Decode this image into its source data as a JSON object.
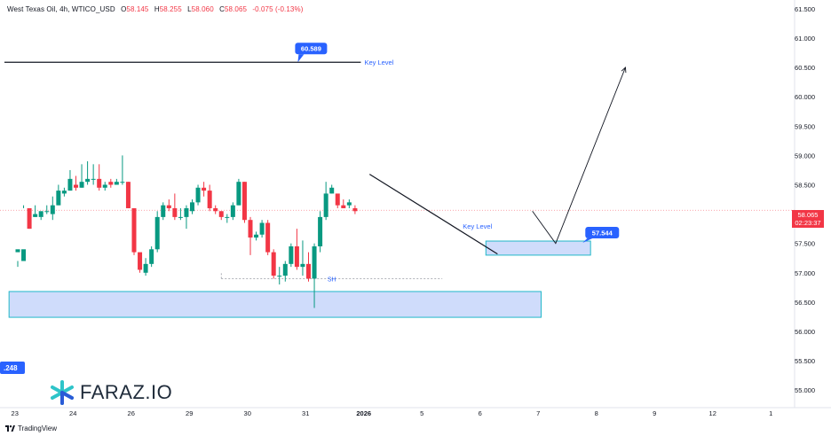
{
  "header": {
    "symbol": "West Texas Oil, 4h, WTICO_USD",
    "open_label": "O",
    "open": "58.145",
    "high_label": "H",
    "high": "58.255",
    "low_label": "L",
    "low": "58.060",
    "close_label": "C",
    "close": "58.065",
    "change": "-0.075 (-0.13%)"
  },
  "price_tag": {
    "price": "58.065",
    "countdown": "02:23:37"
  },
  "branding": {
    "logo_text": "FARAZ.IO",
    "platform": "TradingView"
  },
  "colors": {
    "up": "#089981",
    "down": "#f23645",
    "zone_fill": "#cfdcfb",
    "zone_border": "#22b8c9",
    "callout": "#2962ff"
  },
  "chart_data": {
    "type": "candlestick",
    "ylim": [
      54.7,
      61.65
    ],
    "y_ticks": [
      "61.500",
      "61.000",
      "60.500",
      "60.000",
      "59.500",
      "59.000",
      "58.500",
      "58.000",
      "57.500",
      "57.000",
      "56.500",
      "56.000",
      "55.500",
      "55.000"
    ],
    "y_tick_values": [
      61.5,
      61.0,
      60.5,
      60.0,
      59.5,
      59.0,
      58.5,
      58.0,
      57.5,
      57.0,
      56.5,
      56.0,
      55.5,
      55.0
    ],
    "x_ticks": [
      "23",
      "24",
      "26",
      "29",
      "30",
      "31",
      "2026",
      "5",
      "6",
      "7",
      "8",
      "9",
      "12",
      "1"
    ],
    "x_tick_positions": [
      -0.5,
      9.5,
      19.5,
      29.5,
      39.5,
      49.5,
      59.5,
      69.5,
      79.5,
      89.5,
      99.5,
      109.5,
      119.5,
      129.5
    ],
    "candles": [
      [
        57.35,
        57.4,
        57.2,
        57.1
      ],
      [
        57.2,
        57.4,
        58.1,
        58.15
      ],
      [
        58.1,
        57.75,
        58.1,
        57.75
      ],
      [
        57.95,
        58.0,
        58.15,
        57.95
      ],
      [
        57.95,
        58.05,
        57.95,
        57.9
      ],
      [
        58.05,
        58.05,
        58.15,
        58.0
      ],
      [
        58.0,
        58.15,
        58.3,
        57.9
      ],
      [
        58.15,
        58.4,
        58.5,
        58.15
      ],
      [
        58.35,
        58.4,
        58.45,
        58.3
      ],
      [
        58.4,
        58.6,
        58.75,
        58.4
      ],
      [
        58.5,
        58.45,
        58.65,
        58.4
      ],
      [
        58.45,
        58.55,
        58.85,
        58.45
      ],
      [
        58.55,
        58.6,
        58.9,
        58.5
      ],
      [
        58.6,
        58.6,
        58.85,
        58.5
      ],
      [
        58.6,
        58.45,
        58.85,
        58.4
      ],
      [
        58.45,
        58.5,
        58.55,
        58.4
      ],
      [
        58.55,
        58.5,
        58.6,
        58.45
      ],
      [
        58.5,
        58.55,
        58.6,
        58.5
      ],
      [
        58.55,
        58.55,
        59.0,
        58.5
      ],
      [
        58.55,
        58.1,
        58.55,
        58.1
      ],
      [
        58.1,
        57.35,
        58.1,
        57.3
      ],
      [
        57.35,
        57.05,
        57.3,
        57.0
      ],
      [
        57.0,
        57.15,
        57.25,
        56.95
      ],
      [
        57.15,
        57.4,
        57.45,
        57.1
      ],
      [
        57.4,
        57.95,
        58.05,
        57.35
      ],
      [
        57.95,
        58.15,
        58.2,
        57.9
      ],
      [
        58.15,
        58.1,
        58.25,
        58.05
      ],
      [
        58.1,
        57.95,
        58.35,
        57.9
      ],
      [
        57.95,
        57.95,
        58.1,
        57.9
      ],
      [
        57.95,
        58.1,
        58.15,
        57.75
      ],
      [
        58.05,
        58.2,
        58.25,
        58.0
      ],
      [
        58.2,
        58.45,
        58.5,
        58.15
      ],
      [
        58.45,
        58.4,
        58.55,
        58.3
      ],
      [
        58.4,
        58.1,
        58.5,
        58.05
      ],
      [
        58.1,
        58.05,
        58.15,
        58.0
      ],
      [
        58.05,
        57.95,
        58.05,
        57.9
      ],
      [
        57.95,
        57.95,
        58.0,
        57.85
      ],
      [
        57.95,
        58.15,
        58.2,
        57.9
      ],
      [
        58.15,
        58.55,
        58.6,
        58.15
      ],
      [
        58.55,
        57.9,
        58.55,
        57.85
      ],
      [
        57.9,
        57.6,
        57.95,
        57.3
      ],
      [
        57.6,
        57.65,
        57.7,
        57.55
      ],
      [
        57.65,
        57.85,
        57.9,
        57.6
      ],
      [
        57.85,
        57.35,
        57.9,
        57.3
      ],
      [
        57.35,
        56.95,
        57.4,
        56.9
      ],
      [
        56.95,
        56.95,
        57.1,
        56.8
      ],
      [
        56.95,
        57.15,
        57.2,
        56.85
      ],
      [
        57.15,
        57.45,
        57.5,
        57.1
      ],
      [
        57.45,
        57.1,
        57.75,
        57.05
      ],
      [
        57.1,
        57.15,
        57.55,
        56.95
      ],
      [
        57.15,
        56.9,
        57.35,
        56.85
      ],
      [
        56.9,
        57.45,
        57.5,
        56.4
      ],
      [
        57.45,
        57.95,
        58.05,
        57.35
      ],
      [
        57.95,
        58.35,
        58.55,
        57.9
      ],
      [
        58.35,
        58.45,
        58.5,
        58.35
      ],
      [
        58.35,
        58.15,
        58.3,
        58.1
      ],
      [
        58.15,
        58.1,
        58.25,
        58.1
      ],
      [
        58.15,
        58.2,
        58.25,
        58.1
      ],
      [
        58.1,
        58.05,
        58.15,
        58.0
      ]
    ],
    "candle_x": [
      0,
      1,
      2,
      3,
      4,
      5,
      6,
      7,
      8,
      9,
      10,
      11,
      12,
      13,
      14,
      15,
      16,
      17,
      18,
      19,
      20,
      21,
      22,
      23,
      24,
      25,
      26,
      27,
      28,
      29,
      30,
      31,
      32,
      33,
      34,
      35,
      36,
      37,
      38,
      39,
      40,
      41,
      42,
      43,
      44,
      45,
      46,
      47,
      48,
      49,
      50,
      51,
      52,
      53,
      54,
      55,
      56,
      57,
      58
    ],
    "levels": [
      {
        "price": 60.589,
        "label": "Key Level",
        "callout": "60.589",
        "x_start": -1.5,
        "x_end": 59.0
      },
      {
        "price": 56.9,
        "label": "SH",
        "x_start": 35.0,
        "x_end": 73.0,
        "style": "dotted"
      }
    ],
    "zones": [
      {
        "top": 56.68,
        "bottom": 56.24,
        "x_start": -1.5,
        "x_end": 90.0
      },
      {
        "top": 57.54,
        "bottom": 57.3,
        "x_start": 80.5,
        "x_end": 98.5,
        "callout": "57.544"
      }
    ],
    "trendline": {
      "x1": 60.5,
      "y1": 58.68,
      "x2": 82.5,
      "y2": 57.32,
      "label": "Key Level"
    },
    "projection": [
      [
        88.5,
        58.05
      ],
      [
        92.5,
        57.5
      ],
      [
        104.5,
        60.5
      ]
    ],
    "left_tag": ".248",
    "current_price": 58.065
  }
}
